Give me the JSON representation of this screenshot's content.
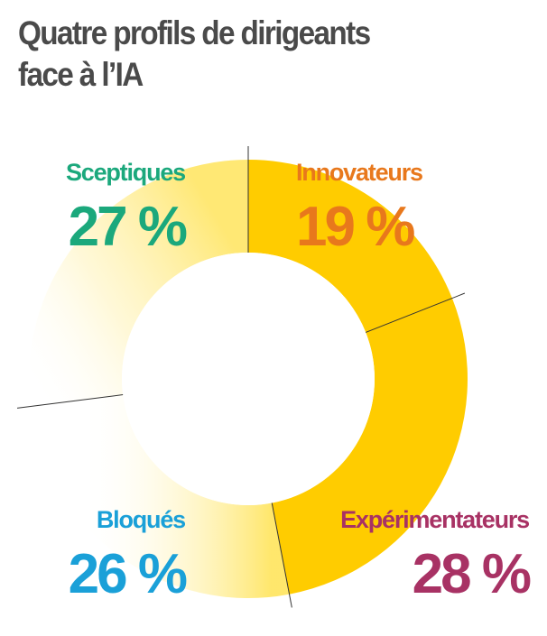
{
  "title_lines": [
    "Quatre profils de dirigeants",
    "face à l’IA"
  ],
  "chart_data": {
    "type": "pie",
    "style": "donut",
    "title": "Quatre profils de dirigeants face à l’IA",
    "slices": [
      {
        "name": "Innovateurs",
        "value": 19,
        "label": "19 %",
        "color": "#E8781C"
      },
      {
        "name": "Expérimentateurs",
        "value": 28,
        "label": "28 %",
        "color": "#A83264"
      },
      {
        "name": "Bloqués",
        "value": 26,
        "label": "26 %",
        "color": "#1AA0D8"
      },
      {
        "name": "Sceptiques",
        "value": 27,
        "label": "27 %",
        "color": "#1BA87C"
      }
    ],
    "fill_color": "#FFCC00",
    "divider_color": "#333333"
  }
}
